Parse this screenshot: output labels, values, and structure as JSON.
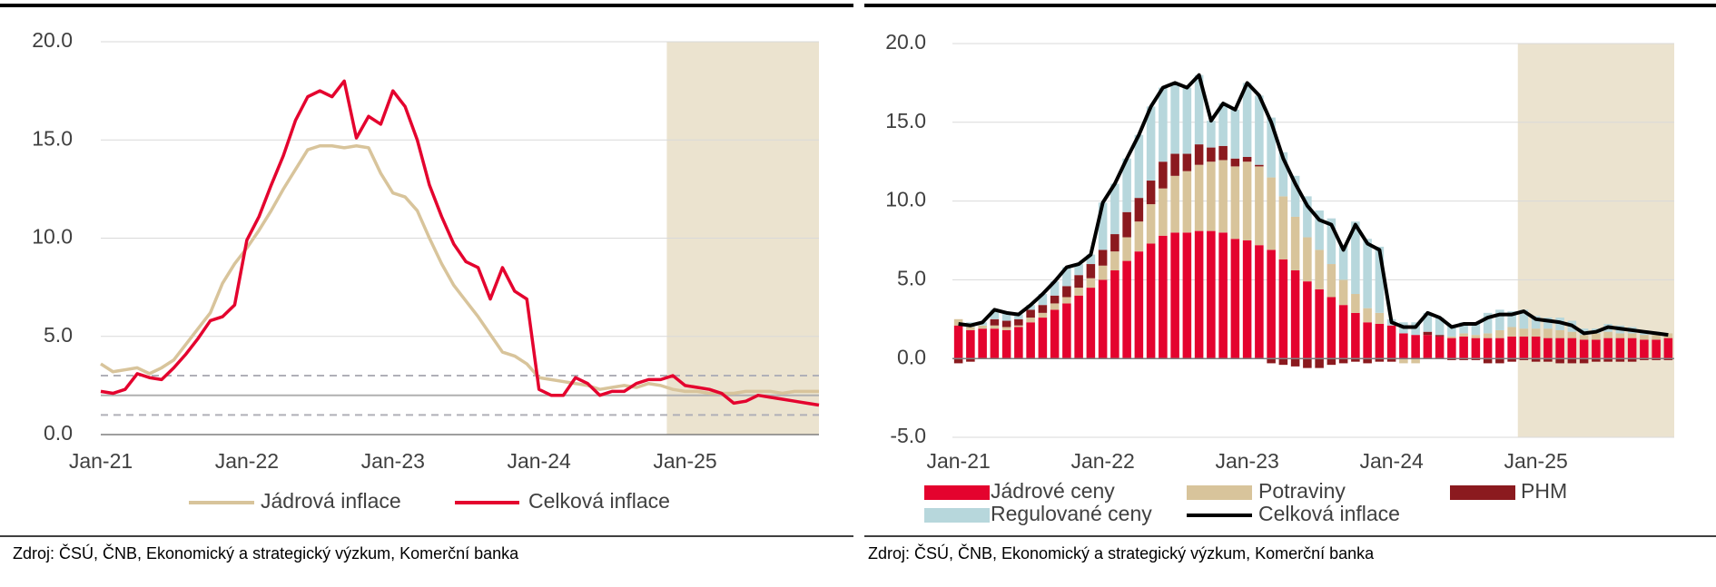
{
  "chart_data": [
    {
      "type": "line",
      "source": "Zdroj: ČSÚ, ČNB, Ekonomický a strategický výzkum, Komerční banka",
      "categories": [
        "Jan-21",
        null,
        null,
        null,
        null,
        null,
        null,
        null,
        null,
        null,
        null,
        null,
        "Jan-22",
        null,
        null,
        null,
        null,
        null,
        null,
        null,
        null,
        null,
        null,
        null,
        "Jan-23",
        null,
        null,
        null,
        null,
        null,
        null,
        null,
        null,
        null,
        null,
        null,
        "Jan-24",
        null,
        null,
        null,
        null,
        null,
        null,
        null,
        null,
        null,
        null,
        null,
        "Jan-25",
        null,
        null,
        null,
        null,
        null,
        null,
        null,
        null,
        null,
        null,
        null
      ],
      "series": [
        {
          "name": "Jádrová inflace",
          "color": "#d8c49b",
          "values": [
            3.6,
            3.2,
            3.3,
            3.4,
            3.1,
            3.4,
            3.8,
            4.6,
            5.4,
            6.2,
            7.7,
            8.7,
            9.5,
            10.4,
            11.4,
            12.5,
            13.5,
            14.5,
            14.7,
            14.7,
            14.6,
            14.7,
            14.6,
            13.3,
            12.3,
            12.1,
            11.4,
            10.0,
            8.7,
            7.6,
            6.8,
            6.0,
            5.1,
            4.2,
            4.0,
            3.6,
            2.9,
            2.8,
            2.7,
            2.6,
            2.5,
            2.3,
            2.4,
            2.5,
            2.4,
            2.6,
            2.5,
            2.3,
            2.2,
            2.2,
            2.1,
            2.1,
            2.1,
            2.2,
            2.2,
            2.2,
            2.1,
            2.2,
            2.2,
            2.2
          ]
        },
        {
          "name": "Celková inflace",
          "color": "#e4032e",
          "values": [
            2.2,
            2.1,
            2.3,
            3.1,
            2.9,
            2.8,
            3.4,
            4.1,
            4.9,
            5.8,
            6.0,
            6.6,
            9.9,
            11.1,
            12.7,
            14.2,
            16.0,
            17.2,
            17.5,
            17.2,
            18.0,
            15.1,
            16.2,
            15.8,
            17.5,
            16.7,
            15.0,
            12.7,
            11.1,
            9.7,
            8.8,
            8.5,
            6.9,
            8.5,
            7.3,
            6.9,
            2.3,
            2.0,
            2.0,
            2.9,
            2.6,
            2.0,
            2.2,
            2.2,
            2.6,
            2.8,
            2.8,
            3.0,
            2.5,
            2.4,
            2.3,
            2.1,
            1.6,
            1.7,
            2.0,
            1.9,
            1.8,
            1.7,
            1.6,
            1.5
          ]
        }
      ],
      "reference_lines": [
        {
          "value": 3,
          "dashed": true,
          "color": "#b0b0b8"
        },
        {
          "value": 2,
          "dashed": false,
          "color": "#b0b0b0"
        },
        {
          "value": 1,
          "dashed": true,
          "color": "#b0b0b8"
        }
      ],
      "shade_from_index": 47,
      "shade_color": "#ebe3cf",
      "ylim": [
        0,
        20
      ],
      "yticks": [
        {
          "value": 0,
          "label": "0.0"
        },
        {
          "value": 5,
          "label": "5.0"
        },
        {
          "value": 10,
          "label": "10.0"
        },
        {
          "value": 15,
          "label": "15.0"
        },
        {
          "value": 20,
          "label": "20.0"
        }
      ],
      "grid": true
    },
    {
      "type": "bar",
      "stacked": true,
      "source": "Zdroj: ČSÚ, ČNB, Ekonomický a strategický výzkum, Komerční banka",
      "categories": [
        "Jan-21",
        null,
        null,
        null,
        null,
        null,
        null,
        null,
        null,
        null,
        null,
        null,
        "Jan-22",
        null,
        null,
        null,
        null,
        null,
        null,
        null,
        null,
        null,
        null,
        null,
        "Jan-23",
        null,
        null,
        null,
        null,
        null,
        null,
        null,
        null,
        null,
        null,
        null,
        "Jan-24",
        null,
        null,
        null,
        null,
        null,
        null,
        null,
        null,
        null,
        null,
        null,
        "Jan-25",
        null,
        null,
        null,
        null,
        null,
        null,
        null,
        null,
        null,
        null,
        null
      ],
      "series": [
        {
          "name": "Jádrové ceny",
          "color": "#e4032e",
          "values": [
            2.1,
            1.8,
            1.9,
            1.9,
            1.8,
            2.0,
            2.3,
            2.6,
            3.1,
            3.5,
            4.0,
            4.5,
            5.0,
            5.6,
            6.2,
            6.8,
            7.3,
            7.8,
            8.0,
            8.0,
            8.1,
            8.1,
            8.0,
            7.6,
            7.5,
            7.2,
            6.9,
            6.3,
            5.6,
            4.9,
            4.4,
            3.9,
            3.4,
            2.9,
            2.3,
            2.2,
            2.1,
            1.6,
            1.5,
            1.5,
            1.4,
            1.3,
            1.4,
            1.3,
            1.3,
            1.3,
            1.4,
            1.4,
            1.4,
            1.3,
            1.3,
            1.3,
            1.2,
            1.2,
            1.3,
            1.3,
            1.3,
            1.2,
            1.2,
            1.3
          ]
        },
        {
          "name": "Potraviny",
          "color": "#d8c49b",
          "values": [
            0.4,
            0.2,
            0.2,
            0.2,
            0.2,
            0.1,
            0.3,
            0.3,
            0.4,
            0.4,
            0.5,
            0.6,
            0.9,
            1.2,
            1.5,
            1.9,
            2.5,
            3.0,
            3.6,
            3.9,
            4.2,
            4.4,
            4.6,
            4.6,
            5.0,
            5.0,
            4.6,
            4.0,
            3.4,
            2.8,
            2.5,
            2.1,
            1.6,
            1.2,
            0.9,
            0.7,
            0.0,
            -0.3,
            -0.3,
            0.0,
            0.0,
            0.1,
            0.2,
            0.2,
            0.3,
            0.5,
            0.6,
            0.5,
            0.5,
            0.6,
            0.5,
            0.4,
            0.3,
            0.4,
            0.4,
            0.3,
            0.3,
            0.3,
            0.3,
            0.3
          ]
        },
        {
          "name": "PHM",
          "color": "#8b1a1f",
          "values": [
            -0.3,
            -0.2,
            0.0,
            0.4,
            0.4,
            0.4,
            0.5,
            0.5,
            0.5,
            0.7,
            0.8,
            0.9,
            1.0,
            1.1,
            1.6,
            1.5,
            1.5,
            1.7,
            1.4,
            1.1,
            1.3,
            0.9,
            0.9,
            0.5,
            0.3,
            0.1,
            -0.3,
            -0.4,
            -0.5,
            -0.6,
            -0.6,
            -0.4,
            -0.3,
            -0.2,
            -0.3,
            -0.2,
            -0.2,
            0.0,
            0.0,
            0.2,
            0.1,
            -0.1,
            -0.1,
            -0.1,
            -0.3,
            -0.3,
            -0.2,
            -0.1,
            -0.2,
            -0.2,
            -0.3,
            -0.3,
            -0.3,
            -0.2,
            -0.2,
            -0.2,
            -0.2,
            -0.1,
            -0.1,
            -0.1
          ]
        },
        {
          "name": "Regulované ceny",
          "color": "#b7d7dc",
          "values": [
            0.0,
            0.3,
            0.2,
            0.6,
            0.5,
            0.3,
            0.3,
            0.7,
            0.9,
            1.2,
            0.7,
            0.6,
            3.0,
            3.2,
            3.4,
            4.0,
            4.7,
            4.7,
            4.5,
            4.2,
            4.4,
            1.7,
            2.7,
            3.1,
            4.7,
            4.4,
            3.8,
            2.8,
            2.6,
            2.6,
            2.5,
            2.9,
            2.2,
            4.6,
            4.4,
            4.2,
            0.4,
            0.7,
            0.8,
            1.2,
            1.1,
            0.7,
            0.7,
            0.8,
            1.3,
            1.3,
            1.0,
            1.2,
            0.8,
            0.7,
            0.8,
            0.7,
            0.4,
            0.3,
            0.5,
            0.5,
            0.4,
            0.3,
            0.2,
            0.0
          ]
        },
        {
          "name": "Celková inflace",
          "color": "#000000",
          "type": "line",
          "values": [
            2.2,
            2.1,
            2.3,
            3.1,
            2.9,
            2.8,
            3.4,
            4.1,
            4.9,
            5.8,
            6.0,
            6.6,
            9.9,
            11.1,
            12.7,
            14.2,
            16.0,
            17.2,
            17.5,
            17.2,
            18.0,
            15.1,
            16.2,
            15.8,
            17.5,
            16.7,
            15.0,
            12.7,
            11.1,
            9.7,
            8.8,
            8.5,
            6.9,
            8.5,
            7.3,
            6.9,
            2.3,
            2.0,
            2.0,
            2.9,
            2.6,
            2.0,
            2.2,
            2.2,
            2.6,
            2.8,
            2.8,
            3.0,
            2.5,
            2.4,
            2.3,
            2.1,
            1.6,
            1.7,
            2.0,
            1.9,
            1.8,
            1.7,
            1.6,
            1.5
          ]
        }
      ],
      "shade_from_index": 47,
      "shade_color": "#ebe3cf",
      "ylim": [
        -5,
        20
      ],
      "yticks": [
        {
          "value": -5,
          "label": "-5.0"
        },
        {
          "value": 0,
          "label": "0.0"
        },
        {
          "value": 5,
          "label": "5.0"
        },
        {
          "value": 10,
          "label": "10.0"
        },
        {
          "value": 15,
          "label": "15.0"
        },
        {
          "value": 20,
          "label": "20.0"
        }
      ],
      "grid": true
    }
  ]
}
